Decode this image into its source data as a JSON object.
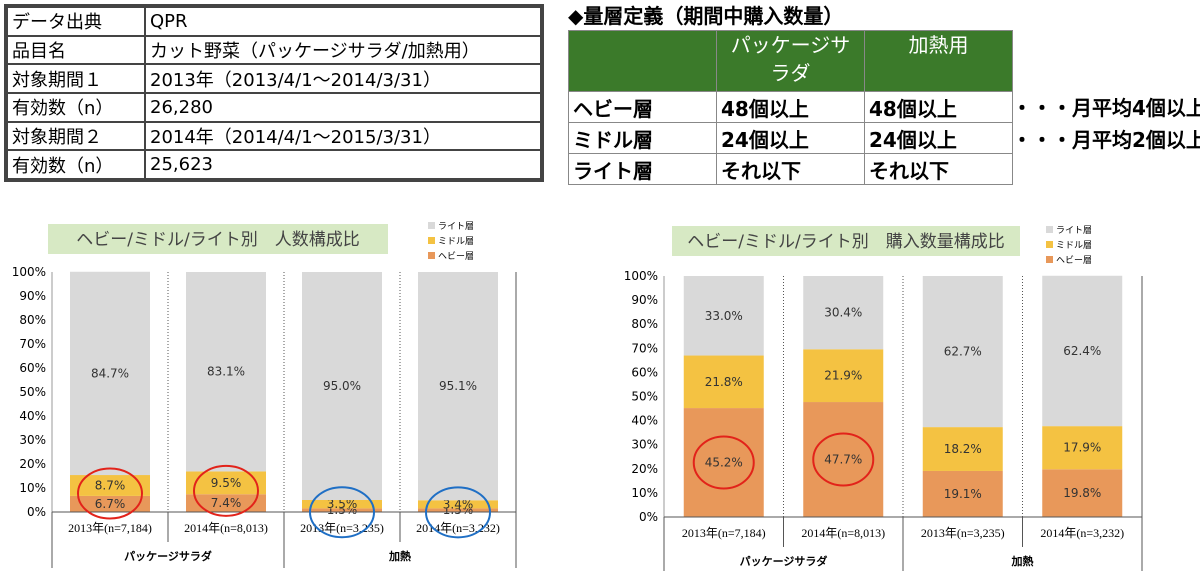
{
  "info": [
    {
      "k": "データ出典",
      "v": "QPR"
    },
    {
      "k": "品目名",
      "v": "カット野菜（パッケージサラダ/加熱用）"
    },
    {
      "k": "対象期間１",
      "v": "2013年（2013/4/1～2014/3/31）"
    },
    {
      "k": "有効数（n）",
      "v": "26,280"
    },
    {
      "k": "対象期間２",
      "v": "2014年（2014/4/1～2015/3/31）"
    },
    {
      "k": "有効数（n）",
      "v": "25,623"
    }
  ],
  "definition": {
    "title": "◆量層定義（期間中購入数量）",
    "header": [
      "",
      "パッケージサラダ",
      "加熱用"
    ],
    "rows": [
      {
        "name": "ヘビー層",
        "a": "48個以上",
        "b": "48個以上",
        "note": "・・・月平均4個以上"
      },
      {
        "name": "ミドル層",
        "a": "24個以上",
        "b": "24個以上",
        "note": "・・・月平均2個以上"
      },
      {
        "name": "ライト層",
        "a": "それ以下",
        "b": "それ以下",
        "note": ""
      }
    ]
  },
  "colors": {
    "light": "#d9d9d9",
    "middle": "#f4c242",
    "heavy": "#e8985a",
    "title_bg": "#d7e9c4",
    "red_circle": "#e2231a",
    "blue_circle": "#1f6fc5",
    "header_green": "#3b7a2a"
  },
  "chart_data": [
    {
      "type": "bar",
      "stacked": true,
      "title": "ヘビー/ミドル/ライト別　人数構成比",
      "categories": [
        "2013年(n=7,184)",
        "2014年(n=8,013)",
        "2013年(n=3,235)",
        "2014年(n=3,232)"
      ],
      "groups": [
        {
          "label": "パッケージサラダ",
          "span": [
            0,
            1
          ]
        },
        {
          "label": "加熱",
          "span": [
            2,
            3
          ]
        }
      ],
      "series": [
        {
          "name": "ヘビー層",
          "values": [
            6.7,
            7.4,
            1.5,
            1.5
          ],
          "labels": [
            "6.7%",
            "7.4%",
            "1.5%",
            "1.5%"
          ]
        },
        {
          "name": "ミドル層",
          "values": [
            8.7,
            9.5,
            3.5,
            3.4
          ],
          "labels": [
            "8.7%",
            "9.5%",
            "3.5%",
            "3.4%"
          ]
        },
        {
          "name": "ライト層",
          "values": [
            84.7,
            83.1,
            95.0,
            95.1
          ],
          "labels": [
            "84.7%",
            "83.1%",
            "95.0%",
            "95.1%"
          ]
        }
      ],
      "legend": [
        "ライト層",
        "ミドル層",
        "ヘビー層"
      ],
      "yticks": [
        "0%",
        "10%",
        "20%",
        "30%",
        "40%",
        "50%",
        "60%",
        "70%",
        "80%",
        "90%",
        "100%"
      ],
      "ylim": [
        0,
        100
      ],
      "highlights": [
        {
          "index": 0,
          "color": "red"
        },
        {
          "index": 1,
          "color": "red"
        },
        {
          "index": 2,
          "color": "blue"
        },
        {
          "index": 3,
          "color": "blue"
        }
      ]
    },
    {
      "type": "bar",
      "stacked": true,
      "title": "ヘビー/ミドル/ライト別　購入数量構成比",
      "categories": [
        "2013年(n=7,184)",
        "2014年(n=8,013)",
        "2013年(n=3,235)",
        "2014年(n=3,232)"
      ],
      "groups": [
        {
          "label": "パッケージサラダ",
          "span": [
            0,
            1
          ]
        },
        {
          "label": "加熱",
          "span": [
            2,
            3
          ]
        }
      ],
      "series": [
        {
          "name": "ヘビー層",
          "values": [
            45.2,
            47.7,
            19.1,
            19.8
          ],
          "labels": [
            "45.2%",
            "47.7%",
            "19.1%",
            "19.8%"
          ]
        },
        {
          "name": "ミドル層",
          "values": [
            21.8,
            21.9,
            18.2,
            17.9
          ],
          "labels": [
            "21.8%",
            "21.9%",
            "18.2%",
            "17.9%"
          ]
        },
        {
          "name": "ライト層",
          "values": [
            33.0,
            30.4,
            62.7,
            62.4
          ],
          "labels": [
            "33.0%",
            "30.4%",
            "62.7%",
            "62.4%"
          ]
        }
      ],
      "legend": [
        "ライト層",
        "ミドル層",
        "ヘビー層"
      ],
      "yticks": [
        "0%",
        "10%",
        "20%",
        "30%",
        "40%",
        "50%",
        "60%",
        "70%",
        "80%",
        "90%",
        "100%"
      ],
      "ylim": [
        0,
        100
      ],
      "highlights": [
        {
          "index": 0,
          "color": "red"
        },
        {
          "index": 1,
          "color": "red"
        }
      ]
    }
  ]
}
